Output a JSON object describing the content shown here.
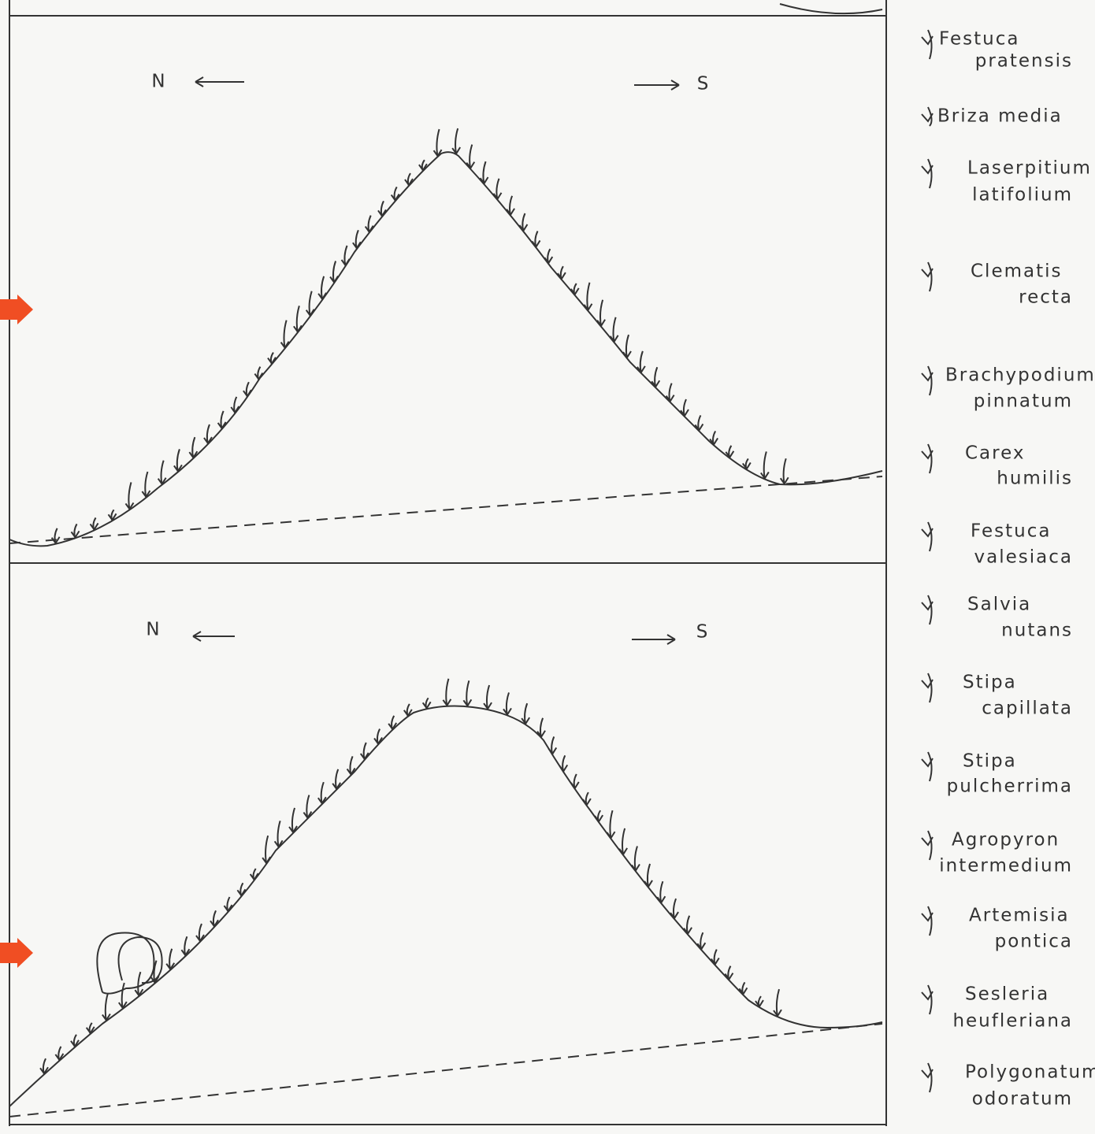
{
  "panels": [
    {
      "north": "N",
      "south": "S"
    },
    {
      "north": "N",
      "south": "S"
    }
  ],
  "legend": [
    {
      "lines": [
        "Festuca",
        "pratensis"
      ]
    },
    {
      "lines": [
        "Briza  media"
      ]
    },
    {
      "lines": [
        "Laserpitium",
        "latifolium"
      ]
    },
    {
      "lines": [
        "Clematis",
        "recta"
      ]
    },
    {
      "lines": [
        "Brachypodium",
        "pinnatum"
      ]
    },
    {
      "lines": [
        "Carex",
        "humilis"
      ]
    },
    {
      "lines": [
        "Festuca",
        "valesiaca"
      ]
    },
    {
      "lines": [
        "Salvia",
        "nutans"
      ]
    },
    {
      "lines": [
        "Stipa",
        "capillata"
      ]
    },
    {
      "lines": [
        "Stipa",
        "pulcherrima"
      ]
    },
    {
      "lines": [
        "Agropyron",
        "intermedium"
      ]
    },
    {
      "lines": [
        "Artemisia",
        "pontica"
      ]
    },
    {
      "lines": [
        "Sesleria",
        "heufleriana"
      ]
    },
    {
      "lines": [
        "Polygonatum",
        "odoratum"
      ]
    }
  ]
}
